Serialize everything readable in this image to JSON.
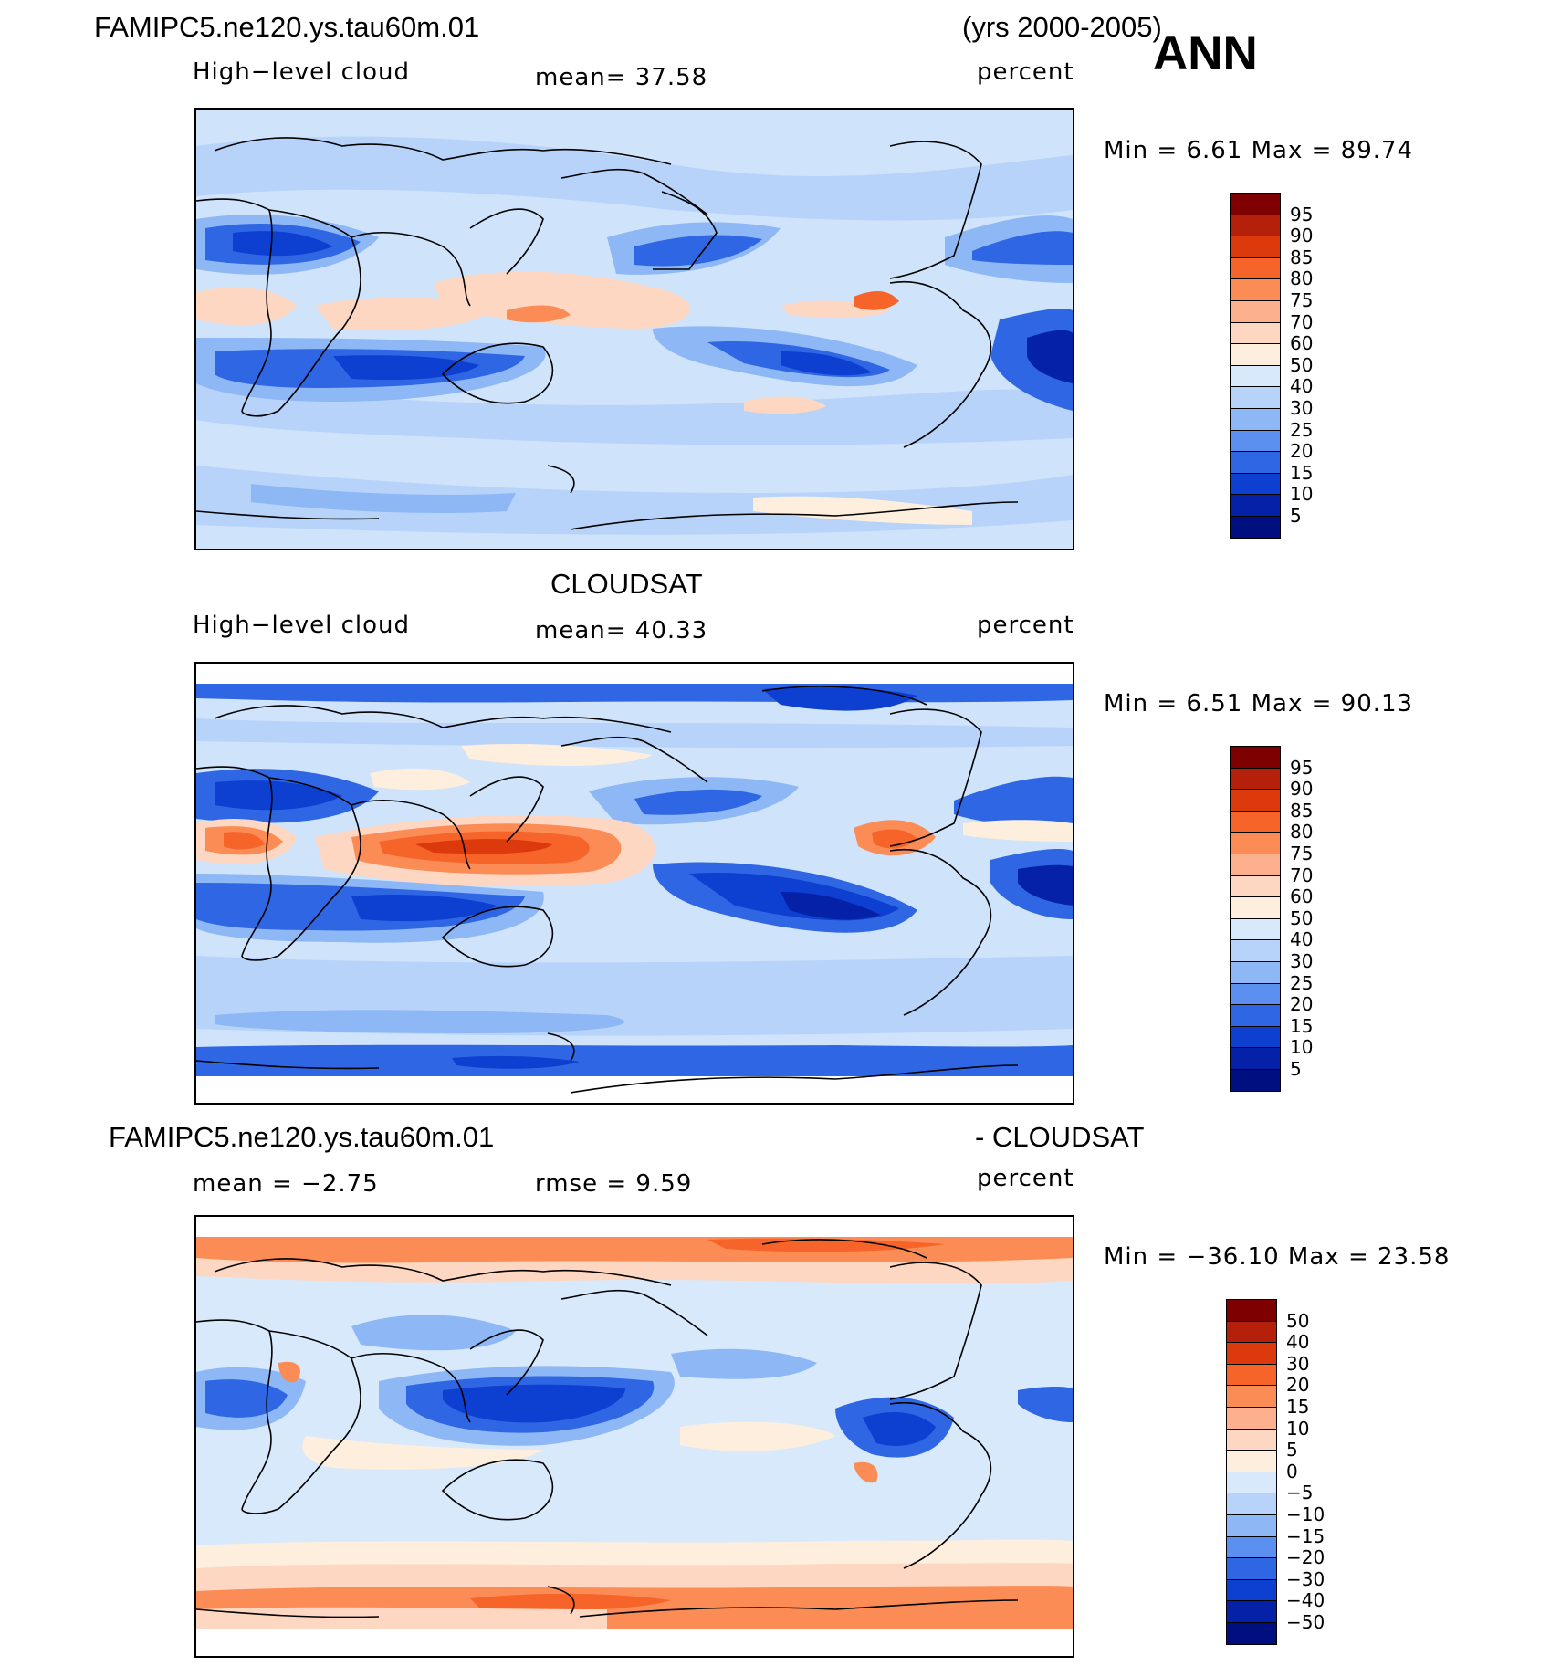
{
  "header": {
    "case_name": "FAMIPC5.ne120.ys.tau60m.01",
    "years": "(yrs 2000-2005)",
    "season": "ANN"
  },
  "panels": [
    {
      "title": "",
      "variable": "High−level cloud",
      "stat": "mean=   37.58",
      "units": "percent",
      "minmax": "Min =     6.61  Max =    89.74",
      "colorbar_labels": [
        "95",
        "90",
        "85",
        "80",
        "75",
        "70",
        "60",
        "50",
        "40",
        "30",
        "25",
        "20",
        "15",
        "10",
        "5"
      ]
    },
    {
      "title": "CLOUDSAT",
      "variable": "High−level cloud",
      "stat": "mean=   40.33",
      "units": "percent",
      "minmax": "Min =     6.51  Max =    90.13",
      "colorbar_labels": [
        "95",
        "90",
        "85",
        "80",
        "75",
        "70",
        "60",
        "50",
        "40",
        "30",
        "25",
        "20",
        "15",
        "10",
        "5"
      ]
    },
    {
      "title_left": "FAMIPC5.ne120.ys.tau60m.01",
      "title_right": "- CLOUDSAT",
      "stat_left": "mean =   −2.75",
      "stat_mid": "rmse =     9.59",
      "units": "percent",
      "minmax": "Min = −36.10  Max =    23.58",
      "colorbar_labels": [
        "50",
        "40",
        "30",
        "20",
        "15",
        "10",
        "5",
        "0",
        "−5",
        "−10",
        "−15",
        "−20",
        "−30",
        "−40",
        "−50"
      ]
    }
  ],
  "colorbar_colors": [
    "#7f0000",
    "#b4200a",
    "#dc3a0c",
    "#f7642a",
    "#fb8c55",
    "#fcb08d",
    "#fdd7c1",
    "#fdeedd",
    "#d8e9fc",
    "#b7d3f9",
    "#8db7f5",
    "#5b8ff0",
    "#2f66e4",
    "#0d3fd1",
    "#0421a8",
    "#000f80"
  ]
}
